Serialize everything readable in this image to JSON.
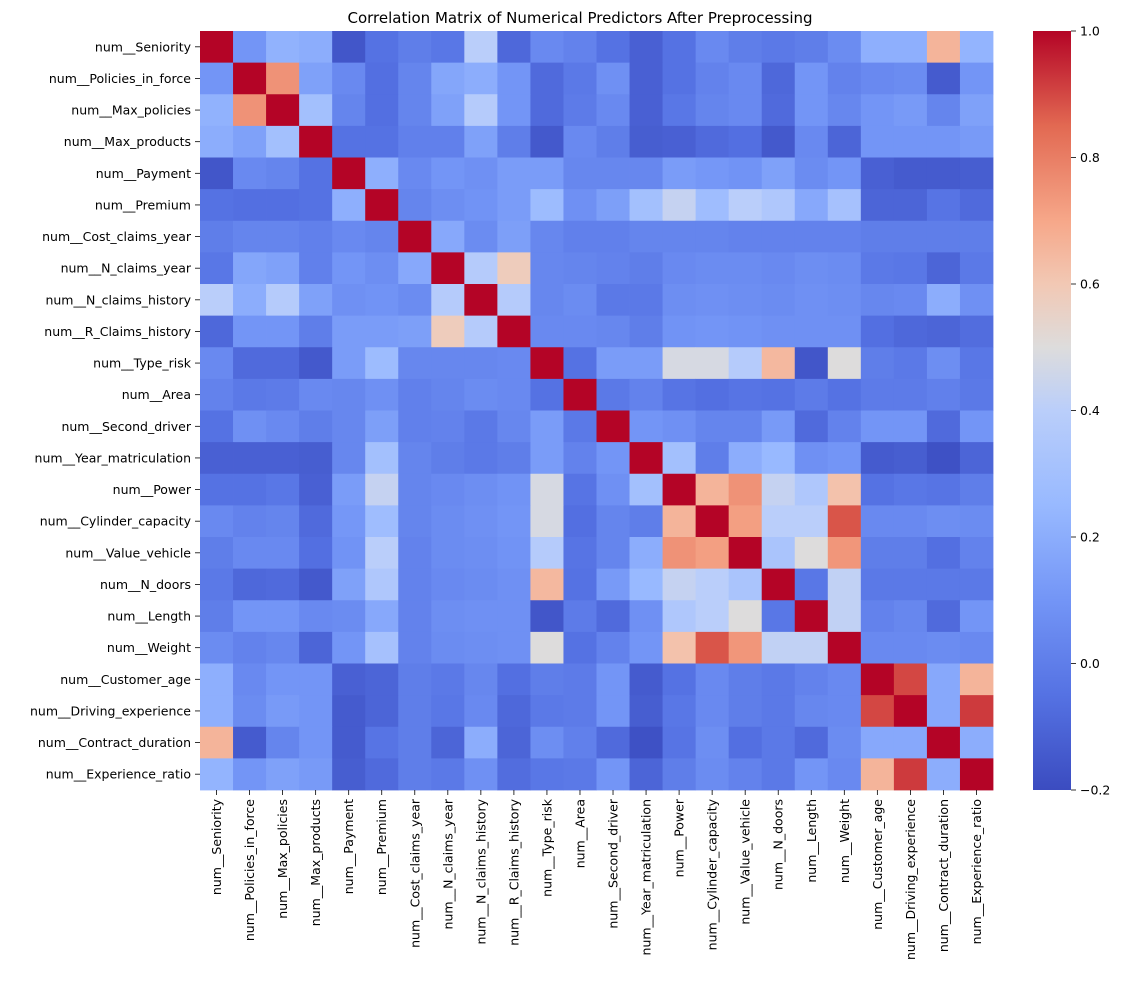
{
  "chart_data": {
    "type": "heatmap",
    "title": "Correlation Matrix of Numerical Predictors After Preprocessing",
    "xlabel": "",
    "ylabel": "",
    "labels": [
      "num__Seniority",
      "num__Policies_in_force",
      "num__Max_policies",
      "num__Max_products",
      "num__Payment",
      "num__Premium",
      "num__Cost_claims_year",
      "num__N_claims_year",
      "num__N_claims_history",
      "num__R_Claims_history",
      "num__Type_risk",
      "num__Area",
      "num__Second_driver",
      "num__Year_matriculation",
      "num__Power",
      "num__Cylinder_capacity",
      "num__Value_vehicle",
      "num__N_doors",
      "num__Length",
      "num__Weight",
      "num__Customer_age",
      "num__Driving_experience",
      "num__Contract_duration",
      "num__Experience_ratio"
    ],
    "colorbar": {
      "colormap": "coolwarm",
      "range": [
        -0.2,
        1.0
      ],
      "ticks": [
        -0.2,
        0.0,
        0.2,
        0.4,
        0.6,
        0.8,
        1.0
      ],
      "tick_labels": [
        "−0.2",
        "0.0",
        "0.2",
        "0.4",
        "0.6",
        "0.8",
        "1.0"
      ]
    },
    "values": [
      [
        1.0,
        0.1,
        0.22,
        0.2,
        -0.16,
        -0.05,
        0.0,
        -0.03,
        0.4,
        -0.09,
        0.05,
        0.02,
        -0.05,
        -0.12,
        -0.05,
        0.05,
        0.0,
        -0.02,
        0.0,
        0.06,
        0.21,
        0.21,
        0.66,
        0.23
      ],
      [
        0.1,
        1.0,
        0.75,
        0.15,
        0.05,
        -0.06,
        0.03,
        0.17,
        0.2,
        0.1,
        -0.08,
        -0.02,
        0.08,
        -0.12,
        -0.05,
        0.02,
        0.05,
        -0.09,
        0.1,
        0.02,
        0.05,
        0.06,
        -0.14,
        0.1
      ],
      [
        0.22,
        0.75,
        1.0,
        0.3,
        0.03,
        -0.06,
        0.03,
        0.15,
        0.38,
        0.1,
        -0.08,
        -0.01,
        0.05,
        -0.12,
        -0.03,
        0.03,
        0.05,
        -0.08,
        0.1,
        0.04,
        0.1,
        0.12,
        0.03,
        0.15
      ],
      [
        0.2,
        0.15,
        0.3,
        1.0,
        -0.05,
        -0.05,
        0.01,
        0.01,
        0.15,
        0.0,
        -0.15,
        0.05,
        0.0,
        -0.13,
        -0.12,
        -0.08,
        -0.06,
        -0.15,
        0.05,
        -0.1,
        0.1,
        0.1,
        0.1,
        0.12
      ],
      [
        -0.16,
        0.05,
        0.03,
        -0.05,
        1.0,
        0.21,
        0.05,
        0.1,
        0.08,
        0.13,
        0.13,
        0.04,
        0.04,
        0.04,
        0.13,
        0.11,
        0.09,
        0.15,
        0.06,
        0.1,
        -0.12,
        -0.14,
        -0.14,
        -0.13
      ],
      [
        -0.05,
        -0.06,
        -0.06,
        -0.05,
        0.21,
        1.0,
        0.03,
        0.07,
        0.09,
        0.13,
        0.27,
        0.08,
        0.14,
        0.3,
        0.43,
        0.28,
        0.4,
        0.35,
        0.18,
        0.31,
        -0.1,
        -0.1,
        -0.04,
        -0.08
      ],
      [
        0.0,
        0.03,
        0.03,
        0.01,
        0.05,
        0.03,
        1.0,
        0.18,
        0.06,
        0.14,
        0.04,
        0.01,
        0.01,
        0.03,
        0.03,
        0.03,
        0.02,
        0.02,
        0.02,
        0.02,
        0.0,
        0.0,
        0.0,
        0.0
      ],
      [
        -0.03,
        0.17,
        0.15,
        0.01,
        0.1,
        0.07,
        0.18,
        1.0,
        0.38,
        0.58,
        0.04,
        0.03,
        0.02,
        0.0,
        0.05,
        0.06,
        0.06,
        0.05,
        0.07,
        0.06,
        -0.02,
        -0.03,
        -0.1,
        -0.02
      ],
      [
        0.4,
        0.2,
        0.38,
        0.15,
        0.08,
        0.09,
        0.06,
        0.38,
        1.0,
        0.38,
        0.04,
        0.06,
        -0.02,
        -0.02,
        0.07,
        0.08,
        0.07,
        0.06,
        0.08,
        0.07,
        0.04,
        0.05,
        0.2,
        0.08
      ],
      [
        -0.09,
        0.1,
        0.1,
        0.0,
        0.13,
        0.13,
        0.14,
        0.58,
        0.38,
        1.0,
        0.05,
        0.05,
        0.04,
        0.0,
        0.09,
        0.1,
        0.09,
        0.08,
        0.08,
        0.08,
        -0.06,
        -0.09,
        -0.1,
        -0.07
      ],
      [
        0.05,
        -0.08,
        -0.08,
        -0.15,
        0.13,
        0.27,
        0.04,
        0.04,
        0.04,
        0.05,
        1.0,
        -0.05,
        0.13,
        0.13,
        0.48,
        0.48,
        0.38,
        0.65,
        -0.16,
        0.5,
        0.0,
        -0.02,
        0.07,
        -0.03
      ],
      [
        0.02,
        -0.02,
        -0.01,
        0.05,
        0.04,
        0.08,
        0.01,
        0.03,
        0.06,
        0.05,
        -0.05,
        1.0,
        -0.02,
        0.02,
        -0.04,
        -0.06,
        -0.04,
        -0.05,
        -0.01,
        -0.05,
        -0.01,
        -0.01,
        0.01,
        -0.02
      ],
      [
        -0.05,
        0.08,
        0.05,
        0.0,
        0.04,
        0.14,
        0.01,
        0.02,
        -0.02,
        0.04,
        0.13,
        -0.02,
        1.0,
        0.1,
        0.08,
        0.03,
        0.03,
        0.12,
        -0.08,
        0.02,
        0.1,
        0.1,
        -0.08,
        0.1
      ],
      [
        -0.12,
        -0.12,
        -0.12,
        -0.13,
        0.04,
        0.3,
        0.03,
        0.0,
        -0.02,
        0.0,
        0.13,
        0.02,
        0.1,
        1.0,
        0.3,
        0.0,
        0.2,
        0.25,
        0.08,
        0.1,
        -0.14,
        -0.13,
        -0.18,
        -0.1
      ],
      [
        -0.05,
        -0.05,
        -0.03,
        -0.12,
        0.13,
        0.43,
        0.03,
        0.05,
        0.07,
        0.09,
        0.48,
        -0.04,
        0.08,
        0.3,
        1.0,
        0.66,
        0.75,
        0.43,
        0.35,
        0.62,
        -0.05,
        -0.03,
        -0.04,
        0.0
      ],
      [
        0.05,
        0.02,
        0.03,
        -0.08,
        0.11,
        0.28,
        0.03,
        0.06,
        0.08,
        0.1,
        0.48,
        -0.06,
        0.03,
        0.0,
        0.66,
        1.0,
        0.72,
        0.4,
        0.4,
        0.88,
        0.05,
        0.05,
        0.07,
        0.06
      ],
      [
        0.0,
        0.05,
        0.05,
        -0.06,
        0.09,
        0.4,
        0.02,
        0.06,
        0.07,
        0.09,
        0.38,
        -0.04,
        0.03,
        0.2,
        0.75,
        0.72,
        1.0,
        0.33,
        0.5,
        0.74,
        0.0,
        0.0,
        -0.06,
        0.02
      ],
      [
        -0.02,
        -0.09,
        -0.08,
        -0.15,
        0.15,
        0.35,
        0.02,
        0.05,
        0.06,
        0.08,
        0.65,
        -0.05,
        0.12,
        0.25,
        0.43,
        0.4,
        0.33,
        1.0,
        -0.03,
        0.42,
        -0.02,
        -0.02,
        -0.02,
        -0.02
      ],
      [
        0.0,
        0.1,
        0.1,
        0.05,
        0.06,
        0.18,
        0.02,
        0.07,
        0.08,
        0.08,
        -0.16,
        -0.01,
        -0.08,
        0.08,
        0.35,
        0.4,
        0.5,
        -0.03,
        1.0,
        0.42,
        0.02,
        0.04,
        -0.08,
        0.1
      ],
      [
        0.06,
        0.02,
        0.04,
        -0.1,
        0.1,
        0.31,
        0.02,
        0.06,
        0.07,
        0.08,
        0.5,
        -0.05,
        0.02,
        0.1,
        0.62,
        0.88,
        0.74,
        0.42,
        0.42,
        1.0,
        0.05,
        0.05,
        0.06,
        0.05
      ],
      [
        0.21,
        0.05,
        0.1,
        0.1,
        -0.12,
        -0.1,
        0.0,
        -0.02,
        0.04,
        -0.06,
        0.0,
        -0.01,
        0.1,
        -0.14,
        -0.05,
        0.05,
        0.0,
        -0.02,
        0.02,
        0.05,
        1.0,
        0.9,
        0.18,
        0.66
      ],
      [
        0.21,
        0.06,
        0.12,
        0.1,
        -0.14,
        -0.1,
        0.0,
        -0.03,
        0.05,
        -0.09,
        -0.02,
        -0.01,
        0.1,
        -0.13,
        -0.03,
        0.05,
        0.0,
        -0.02,
        0.04,
        0.05,
        0.9,
        1.0,
        0.18,
        0.92
      ],
      [
        0.66,
        -0.14,
        0.03,
        0.1,
        -0.14,
        -0.04,
        0.0,
        -0.1,
        0.2,
        -0.1,
        0.07,
        0.01,
        -0.08,
        -0.18,
        -0.04,
        0.07,
        -0.06,
        -0.02,
        -0.08,
        0.06,
        0.18,
        0.18,
        1.0,
        0.2
      ],
      [
        0.23,
        0.1,
        0.15,
        0.12,
        -0.13,
        -0.08,
        0.0,
        -0.02,
        0.08,
        -0.07,
        -0.03,
        -0.02,
        0.1,
        -0.1,
        0.0,
        0.06,
        0.02,
        -0.02,
        0.1,
        0.05,
        0.66,
        0.92,
        0.2,
        1.0
      ]
    ]
  }
}
